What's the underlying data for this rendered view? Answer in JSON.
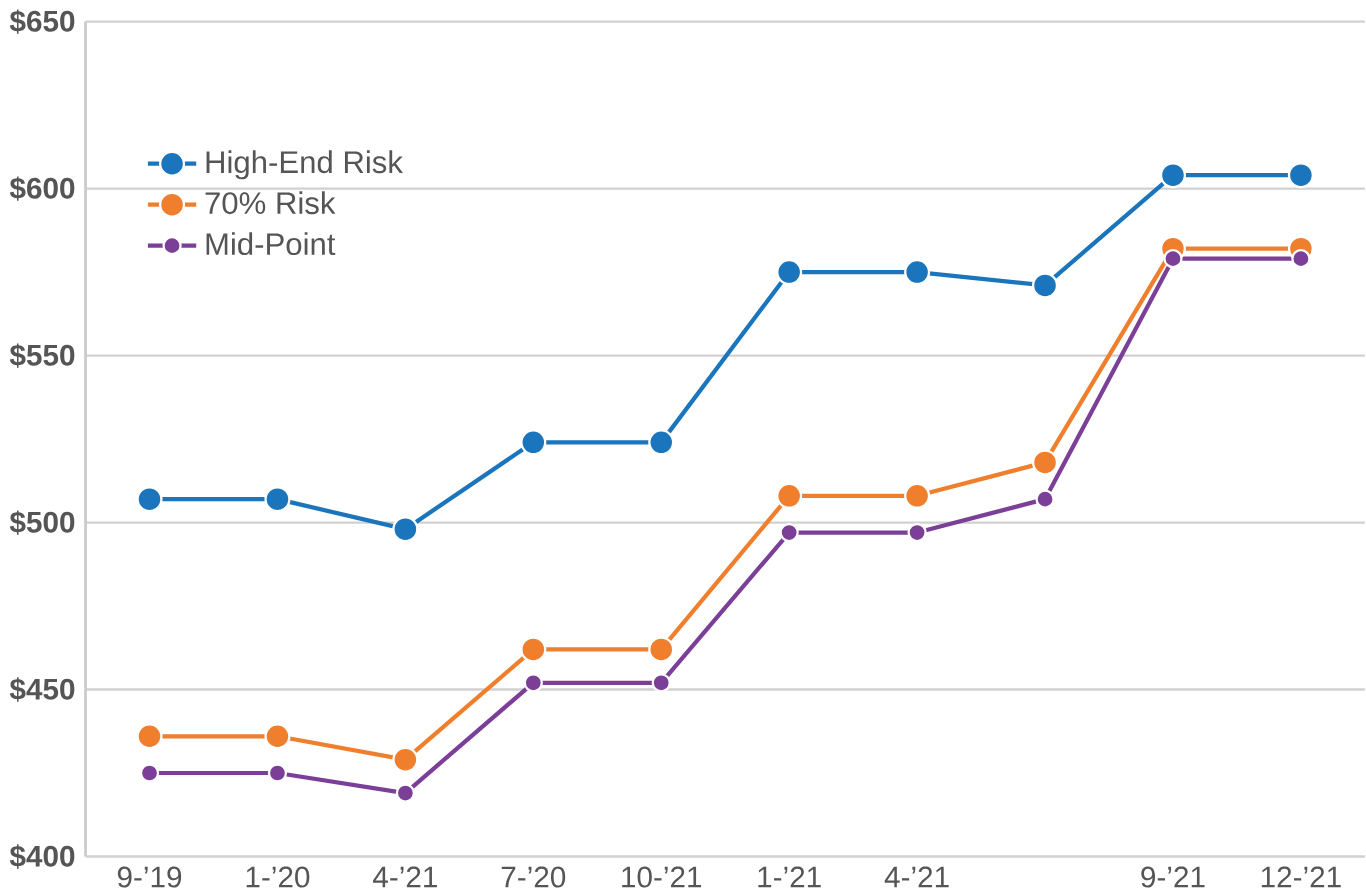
{
  "chart_data": {
    "type": "line",
    "categories": [
      "9-’19",
      "1-’20",
      "4-’21",
      "7-’20",
      "10-’21",
      "1-’21",
      "4-’21",
      null,
      "9-’21",
      "12-’21"
    ],
    "series": [
      {
        "name": "High-End Risk",
        "color": "#1a75bc",
        "values": [
          507,
          507,
          498,
          524,
          524,
          575,
          575,
          571,
          604,
          604
        ]
      },
      {
        "name": "70% Risk",
        "color": "#f07f2d",
        "values": [
          436,
          436,
          429,
          462,
          462,
          508,
          508,
          518,
          582,
          582
        ]
      },
      {
        "name": "Mid-Point",
        "color": "#7b3f98",
        "values": [
          425,
          425,
          419,
          452,
          452,
          497,
          497,
          507,
          579,
          579
        ]
      }
    ],
    "ylim": [
      400,
      650
    ],
    "yticks": [
      {
        "value": 400,
        "label": "$400"
      },
      {
        "value": 450,
        "label": "$450"
      },
      {
        "value": 500,
        "label": "$500"
      },
      {
        "value": 550,
        "label": "$550"
      },
      {
        "value": 600,
        "label": "$600"
      },
      {
        "value": 650,
        "label": "$650"
      }
    ],
    "grid": "y",
    "legend": "top left",
    "marker": "circle",
    "line_style": "solid"
  }
}
